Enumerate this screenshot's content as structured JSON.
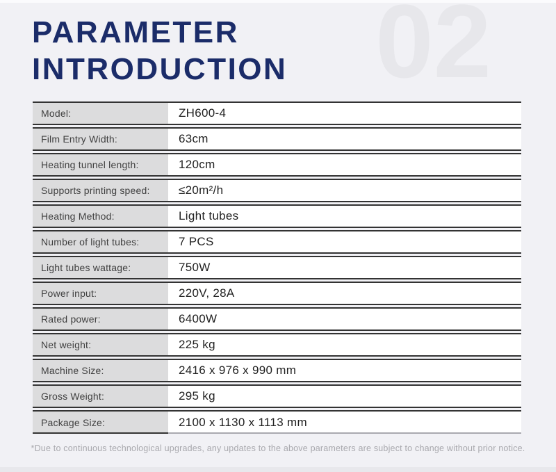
{
  "header": {
    "title_line1": "PARAMETER",
    "title_line2": "INTRODUCTION",
    "section_number": "02"
  },
  "colors": {
    "title_navy": "#1b2c69",
    "watermark_gray": "#e7e7eb",
    "label_cell_gray": "#dcdcdd",
    "row_border_dark": "#333333",
    "page_background": "#f1f1f5",
    "footnote_gray": "#a8a8ad"
  },
  "table": {
    "rows": [
      {
        "label": "Model:",
        "value": "ZH600-4"
      },
      {
        "label": "Film Entry Width:",
        "value": "63cm"
      },
      {
        "label": "Heating tunnel length:",
        "value": "120cm"
      },
      {
        "label": "Supports printing speed:",
        "value": "≤20m²/h"
      },
      {
        "label": "Heating Method:",
        "value": "Light tubes"
      },
      {
        "label": "Number of light tubes:",
        "value": "7 PCS"
      },
      {
        "label": "Light tubes wattage:",
        "value": "750W"
      },
      {
        "label": "Power input:",
        "value": "220V, 28A"
      },
      {
        "label": "Rated power:",
        "value": "6400W"
      },
      {
        "label": "Net weight:",
        "value": "225 kg"
      },
      {
        "label": "Machine Size:",
        "value": "2416 x 976 x 990 mm"
      },
      {
        "label": "Gross Weight:",
        "value": "295 kg"
      },
      {
        "label": "Package Size:",
        "value": "2100 x 1130 x 1113 mm"
      }
    ]
  },
  "footnote": {
    "text": "*Due to continuous technological upgrades, any updates to the above parameters are subject to change without prior notice."
  }
}
